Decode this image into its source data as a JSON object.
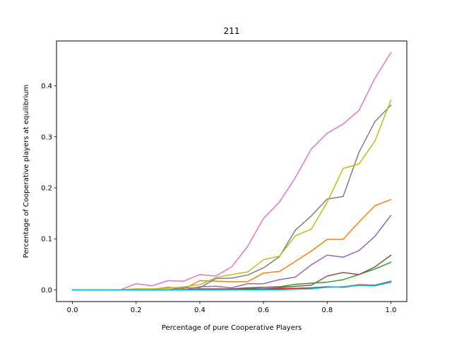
{
  "chart_data": {
    "type": "line",
    "title": "211",
    "xlabel": "Percentage of pure Cooperative Players",
    "ylabel": "Percentage of Cooperative players at equilibrium",
    "xlim": [
      -0.05,
      1.05
    ],
    "ylim": [
      -0.023,
      0.488
    ],
    "xticks": [
      0.0,
      0.2,
      0.4,
      0.6,
      0.8,
      1.0
    ],
    "xtick_labels": [
      "0.0",
      "0.2",
      "0.4",
      "0.6",
      "0.8",
      "1.0"
    ],
    "yticks": [
      0.0,
      0.1,
      0.2,
      0.3,
      0.4
    ],
    "ytick_labels": [
      "0.0",
      "0.1",
      "0.2",
      "0.3",
      "0.4"
    ],
    "grid": false,
    "x": [
      0.0,
      0.05,
      0.1,
      0.15,
      0.2,
      0.25,
      0.3,
      0.35,
      0.4,
      0.45,
      0.5,
      0.55,
      0.6,
      0.65,
      0.7,
      0.75,
      0.8,
      0.85,
      0.9,
      0.95,
      1.0
    ],
    "series": [
      {
        "color": "#1f77b4",
        "values": [
          0,
          0,
          0,
          0,
          0,
          0,
          0,
          0,
          0,
          0,
          0,
          0.002,
          0.002,
          0.003,
          0.003,
          0.004,
          0.006,
          0.005,
          0.009,
          0.008,
          0.015
        ]
      },
      {
        "color": "#ff7f0e",
        "values": [
          0,
          0,
          0,
          0,
          0.002,
          0.001,
          0.005,
          0.002,
          0.018,
          0.017,
          0.016,
          0.016,
          0.033,
          0.036,
          0.056,
          0.076,
          0.099,
          0.099,
          0.133,
          0.165,
          0.177
        ]
      },
      {
        "color": "#2ca02c",
        "values": [
          0,
          0,
          0,
          0,
          0,
          0,
          0,
          0,
          0,
          0,
          0.002,
          0.003,
          0.005,
          0.006,
          0.011,
          0.013,
          0.015,
          0.02,
          0.03,
          0.041,
          0.054
        ]
      },
      {
        "color": "#d62728",
        "values": [
          0,
          0,
          0,
          0,
          0,
          0,
          0,
          0,
          0,
          0,
          0.001,
          0.001,
          0.001,
          0.002,
          0.003,
          0.003,
          0.005,
          0.006,
          0.01,
          0.009,
          0.017
        ]
      },
      {
        "color": "#9467bd",
        "values": [
          0,
          0,
          0,
          0,
          0,
          0,
          0,
          0,
          0.006,
          0.007,
          0.004,
          0.012,
          0.012,
          0.02,
          0.025,
          0.049,
          0.068,
          0.064,
          0.077,
          0.105,
          0.146
        ]
      },
      {
        "color": "#8c564b",
        "values": [
          0,
          0,
          0,
          0,
          0,
          0,
          0,
          0,
          0.002,
          0.002,
          0.002,
          0.004,
          0.005,
          0.005,
          0.007,
          0.009,
          0.027,
          0.034,
          0.03,
          0.045,
          0.068
        ]
      },
      {
        "color": "#e377c2",
        "values": [
          0,
          0,
          0,
          0,
          0.012,
          0.008,
          0.018,
          0.017,
          0.03,
          0.027,
          0.045,
          0.085,
          0.14,
          0.172,
          0.22,
          0.276,
          0.307,
          0.325,
          0.352,
          0.415,
          0.465
        ]
      },
      {
        "color": "#7f7f7f",
        "values": [
          0,
          0,
          0,
          0,
          0,
          0,
          0,
          0.004,
          0.004,
          0.022,
          0.023,
          0.029,
          0.043,
          0.065,
          0.117,
          0.145,
          0.178,
          0.183,
          0.27,
          0.33,
          0.362
        ]
      },
      {
        "color": "#bcbd22",
        "values": [
          0,
          0,
          0,
          0,
          0.002,
          0.002,
          0.003,
          0.006,
          0.01,
          0.024,
          0.03,
          0.035,
          0.059,
          0.066,
          0.106,
          0.119,
          0.172,
          0.238,
          0.247,
          0.292,
          0.372
        ]
      },
      {
        "color": "#17becf",
        "values": [
          0,
          0,
          0,
          0,
          0,
          0,
          0,
          0,
          0,
          0,
          0,
          0,
          0,
          0,
          0.001,
          0.002,
          0.005,
          0.006,
          0.009,
          0.008,
          0.016
        ]
      }
    ]
  }
}
